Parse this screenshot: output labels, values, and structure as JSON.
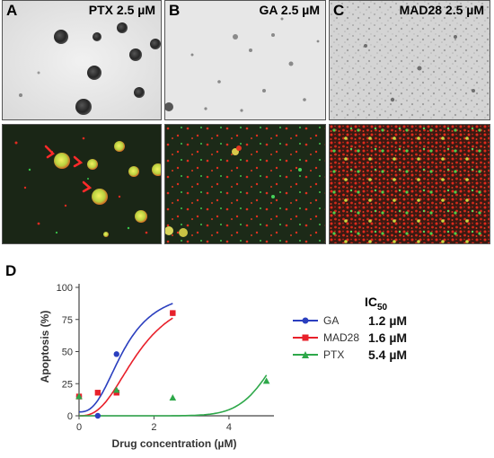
{
  "panels": [
    {
      "letter": "A",
      "title": "PTX 2.5 µM"
    },
    {
      "letter": "B",
      "title": "GA 2.5 µM"
    },
    {
      "letter": "C",
      "title": "MAD28 2.5 µM"
    }
  ],
  "panel_d_letter": "D",
  "legend": {
    "ic50_label": "IC",
    "ic50_sub": "50",
    "items": [
      {
        "name": "GA",
        "ic50": "1.2 µM",
        "color": "#2b3fbf",
        "marker": "circle"
      },
      {
        "name": "MAD28",
        "ic50": "1.6 µM",
        "color": "#e8202a",
        "marker": "square"
      },
      {
        "name": "PTX",
        "ic50": "5.4 µM",
        "color": "#2ea84a",
        "marker": "triangle"
      }
    ]
  },
  "chart_data": {
    "type": "scatter",
    "xlabel": "Drug concentration (µM)",
    "ylabel": "Apoptosis (%)",
    "xlim": [
      0,
      5.2
    ],
    "ylim": [
      0,
      100
    ],
    "xticks": [
      0,
      2,
      4
    ],
    "yticks": [
      0,
      25,
      50,
      75,
      100
    ],
    "series": [
      {
        "name": "GA",
        "color": "#2b3fbf",
        "marker": "circle",
        "points": [
          [
            0,
            15
          ],
          [
            0.5,
            0
          ],
          [
            1,
            48
          ],
          [
            2.5,
            80
          ]
        ],
        "fit": {
          "x": [
            0,
            2.5
          ],
          "ic50": 1.2,
          "top": 100,
          "bottom": 3,
          "hill": 2.6
        }
      },
      {
        "name": "MAD28",
        "color": "#e8202a",
        "marker": "square",
        "points": [
          [
            0,
            15
          ],
          [
            0.5,
            18
          ],
          [
            1,
            18
          ],
          [
            2.5,
            80
          ]
        ],
        "fit": {
          "x": [
            0,
            2.5
          ],
          "ic50": 1.6,
          "top": 100,
          "bottom": 0,
          "hill": 2.6
        }
      },
      {
        "name": "PTX",
        "color": "#2ea84a",
        "marker": "triangle",
        "points": [
          [
            0,
            15
          ],
          [
            1,
            20
          ],
          [
            2.5,
            14
          ],
          [
            5,
            27
          ]
        ],
        "fit": {
          "x": [
            0,
            5
          ],
          "ic50": 5.4,
          "top": 100,
          "bottom": 0,
          "hill": 10
        }
      }
    ]
  }
}
